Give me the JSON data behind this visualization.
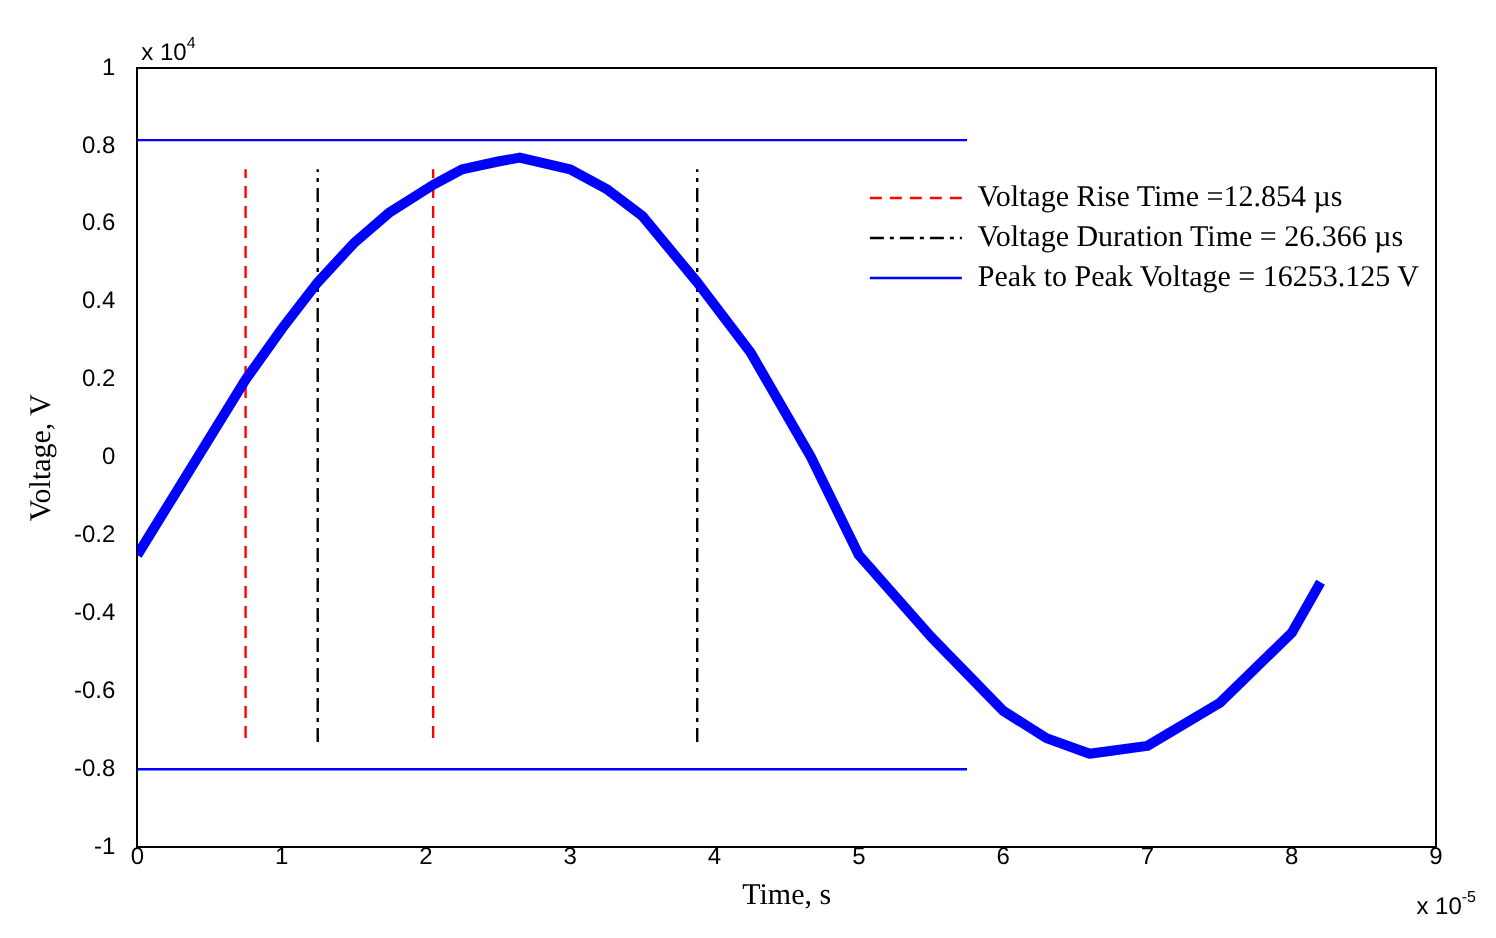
{
  "chart_data": {
    "type": "line",
    "xlabel": "Time, s",
    "ylabel": "Voltage, V",
    "annotations": [
      "x 10$^{4}$",
      "x 10$^{-5}$"
    ],
    "xlim": [
      0,
      9
    ],
    "xticks": [
      0,
      1,
      2,
      3,
      4,
      5,
      6,
      7,
      8,
      9
    ],
    "ylim": [
      -1,
      1
    ],
    "yticks": [
      -1,
      -0.8,
      -0.6,
      -0.4,
      -0.2,
      0,
      0.2,
      0.4,
      0.6,
      0.8,
      1
    ],
    "grid": false,
    "legend": "top right",
    "marker": "none",
    "series": [
      {
        "color": "#0000ff",
        "line_style": "solid",
        "x": [
          0,
          0.25,
          0.5,
          0.75,
          1.0,
          1.25,
          1.5,
          1.75,
          2.05,
          2.25,
          2.5,
          2.65,
          3.0,
          3.25,
          3.5,
          3.88,
          4.25,
          4.67,
          5.0,
          5.5,
          6.0,
          6.3,
          6.6,
          7.0,
          7.5,
          8.0,
          8.2
        ],
        "values": [
          -0.25,
          -0.1,
          0.05,
          0.2,
          0.33,
          0.45,
          0.55,
          0.63,
          0.7,
          0.74,
          0.76,
          0.77,
          0.74,
          0.69,
          0.62,
          0.45,
          0.27,
          0,
          -0.25,
          -0.46,
          -0.65,
          -0.72,
          -0.76,
          -0.74,
          -0.63,
          -0.45,
          -0.32
        ]
      },
      {
        "name": "Voltage Rise Time =12.854 µs",
        "color": "#ff0000",
        "line_style": "dashed",
        "x": [
          0.75,
          0.75,
          null,
          2.05,
          2.05
        ],
        "values": [
          -0.72,
          0.74,
          null,
          -0.72,
          0.74
        ]
      },
      {
        "name": "Voltage Duration Time = 26.366 µs",
        "color": "#000000",
        "line_style": "dashdot",
        "x": [
          1.25,
          1.25,
          null,
          3.88,
          3.88
        ],
        "values": [
          -0.73,
          0.74,
          null,
          -0.73,
          0.74
        ]
      },
      {
        "name": "Peak to Peak Voltage = 16253.125 V",
        "color": "#0000ff",
        "line_style": "solid",
        "x": [
          0,
          5.75
        ],
        "values": [
          0.815,
          0.815
        ]
      },
      {
        "color": "#0000ff",
        "line_style": "solid",
        "x": [
          0,
          5.75
        ],
        "values": [
          -0.8,
          -0.8
        ]
      }
    ]
  }
}
